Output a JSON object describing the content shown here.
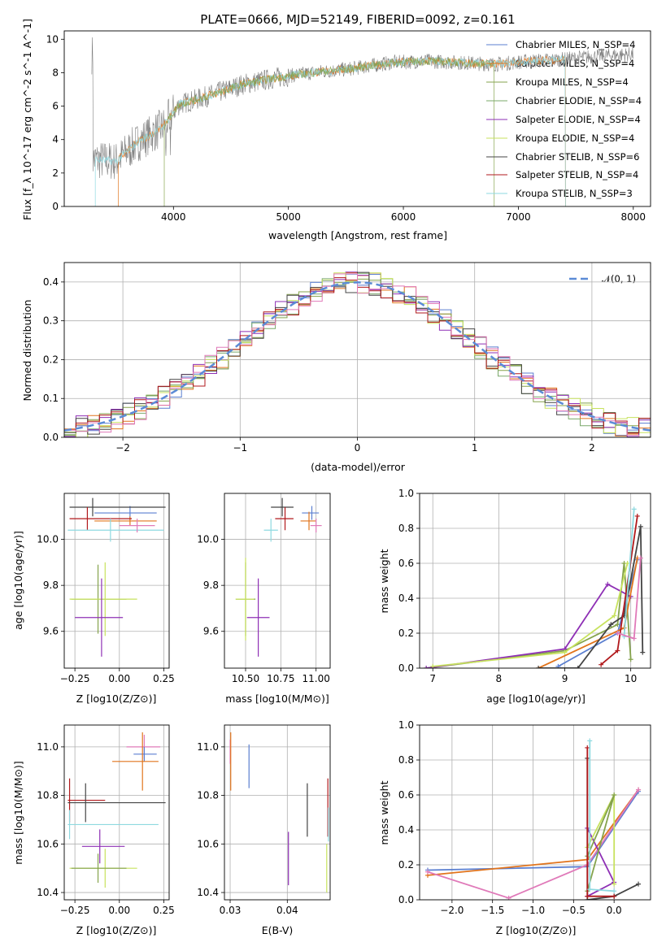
{
  "colors": {
    "chabrier_miles": "#5b7fd0",
    "salpeter_miles": "#e1741c",
    "kroupa_miles": "#85a34c",
    "chabrier_elodie": "#7aa86a",
    "salpeter_elodie": "#8e2fb5",
    "kroupa_elodie": "#c7e25e",
    "chabrier_stelib": "#444444",
    "salpeter_stelib": "#b1191c",
    "kroupa_stelib": "#8ed9e0",
    "pink": "#e07ab9",
    "data": "#808080",
    "normal": "#5b8bd6"
  },
  "chart_data": [
    {
      "id": "spectrum",
      "type": "line",
      "title": "PLATE=0666, MJD=52149, FIBERID=0092, z=0.161",
      "xlabel": "wavelength [Angstrom, rest frame]",
      "ylabel": "Flux [f_λ 10^-17 erg cm^-2 s^-1 A^-1]",
      "xlim": [
        3050,
        8150
      ],
      "ylim": [
        0,
        10.5
      ],
      "xticks": [
        "4000",
        "5000",
        "6000",
        "7000",
        "8000"
      ],
      "yticks": [
        "0",
        "2",
        "4",
        "6",
        "8",
        "10"
      ],
      "legend": [
        "Chabrier MILES, N_SSP=4",
        "Salpeter MILES, N_SSP=4",
        "Kroupa MILES, N_SSP=4",
        "Chabrier ELODIE, N_SSP=4",
        "Salpeter ELODIE, N_SSP=4",
        "Kroupa ELODIE, N_SSP=4",
        "Chabrier STELIB, N_SSP=6",
        "Salpeter STELIB, N_SSP=4",
        "Kroupa STELIB, N_SSP=3"
      ],
      "legend_position": "right",
      "continuum": [
        [
          3300,
          2.8
        ],
        [
          3500,
          2.7
        ],
        [
          3700,
          3.9
        ],
        [
          3900,
          4.7
        ],
        [
          4050,
          6.1
        ],
        [
          4300,
          6.6
        ],
        [
          4600,
          7.3
        ],
        [
          4900,
          7.7
        ],
        [
          5200,
          8.0
        ],
        [
          5500,
          8.2
        ],
        [
          5900,
          8.6
        ],
        [
          6200,
          8.7
        ],
        [
          6500,
          8.6
        ],
        [
          6800,
          8.5
        ],
        [
          7100,
          8.7
        ],
        [
          7400,
          8.8
        ],
        [
          7700,
          9.0
        ],
        [
          8000,
          9.1
        ]
      ],
      "model_ranges": [
        [
          3520,
          7410
        ],
        [
          3320,
          7410
        ],
        [
          3920,
          6790
        ]
      ]
    },
    {
      "id": "residuals",
      "type": "bar",
      "xlabel": "(data-model)/error",
      "ylabel": "Normed distribution",
      "xlim": [
        -2.5,
        2.5
      ],
      "ylim": [
        0,
        0.45
      ],
      "xticks": [
        "−2",
        "−1",
        "0",
        "1",
        "2"
      ],
      "yticks": [
        "0.0",
        "0.1",
        "0.2",
        "0.3",
        "0.4"
      ],
      "legend": [
        "𝒩(0, 1)"
      ],
      "bin_width": 0.1,
      "num_histograms": 9
    },
    {
      "id": "age-vs-Z",
      "type": "scatter",
      "xlabel": "Z [log10(Z/Z⊙)]",
      "ylabel": "age [log10(age/yr)]",
      "xlim": [
        -0.31,
        0.28
      ],
      "ylim": [
        9.44,
        10.2
      ],
      "xticks": [
        "−0.25",
        "0.00",
        "0.25"
      ],
      "yticks": [
        "9.6",
        "9.8",
        "10.0"
      ],
      "points": [
        {
          "x": 0.06,
          "y": 10.115,
          "xerr": [
            0.2,
            0.15
          ],
          "yerr": [
            0.03,
            0.03
          ],
          "c": "chabrier_miles"
        },
        {
          "x": 0.06,
          "y": 10.08,
          "xerr": [
            0.2,
            0.15
          ],
          "yerr": [
            0.02,
            0.02
          ],
          "c": "salpeter_miles"
        },
        {
          "x": -0.15,
          "y": 10.14,
          "xerr": [
            0.13,
            0.41
          ],
          "yerr": [
            0.04,
            0.04
          ],
          "c": "chabrier_stelib"
        },
        {
          "x": -0.18,
          "y": 10.09,
          "xerr": [
            0.1,
            0.25
          ],
          "yerr": [
            0.05,
            0.05
          ],
          "c": "salpeter_stelib"
        },
        {
          "x": -0.05,
          "y": 10.04,
          "xerr": [
            0.24,
            0.3
          ],
          "yerr": [
            0.05,
            0.05
          ],
          "c": "kroupa_stelib"
        },
        {
          "x": 0.1,
          "y": 10.06,
          "xerr": [
            0.1,
            0.1
          ],
          "yerr": [
            0.03,
            0.03
          ],
          "c": "pink"
        },
        {
          "x": -0.12,
          "y": 9.74,
          "xerr": [
            0.15,
            0.16
          ],
          "yerr": [
            0.15,
            0.15
          ],
          "c": "kroupa_miles"
        },
        {
          "x": -0.08,
          "y": 9.74,
          "xerr": [
            0.2,
            0.18
          ],
          "yerr": [
            0.16,
            0.16
          ],
          "c": "kroupa_elodie"
        },
        {
          "x": -0.1,
          "y": 9.66,
          "xerr": [
            0.15,
            0.12
          ],
          "yerr": [
            0.17,
            0.17
          ],
          "c": "salpeter_elodie"
        }
      ]
    },
    {
      "id": "age-vs-mass",
      "type": "scatter",
      "xlabel": "mass [log10(M/M⊙)]",
      "ylabel": "",
      "xlim": [
        10.35,
        11.1
      ],
      "ylim": [
        9.44,
        10.2
      ],
      "xticks": [
        "10.50",
        "10.75",
        "11.00"
      ],
      "yticks": [
        "9.6",
        "9.8",
        "10.0"
      ],
      "points": [
        {
          "x": 10.97,
          "y": 10.115,
          "xerr": [
            0.07,
            0.05
          ],
          "yerr": [
            0.03,
            0.03
          ],
          "c": "chabrier_miles"
        },
        {
          "x": 10.95,
          "y": 10.08,
          "xerr": [
            0.06,
            0.05
          ],
          "yerr": [
            0.04,
            0.04
          ],
          "c": "salpeter_miles"
        },
        {
          "x": 10.76,
          "y": 10.14,
          "xerr": [
            0.08,
            0.08
          ],
          "yerr": [
            0.04,
            0.04
          ],
          "c": "chabrier_stelib"
        },
        {
          "x": 10.78,
          "y": 10.09,
          "xerr": [
            0.07,
            0.06
          ],
          "yerr": [
            0.05,
            0.05
          ],
          "c": "salpeter_stelib"
        },
        {
          "x": 10.68,
          "y": 10.04,
          "xerr": [
            0.05,
            0.05
          ],
          "yerr": [
            0.05,
            0.05
          ],
          "c": "kroupa_stelib"
        },
        {
          "x": 11.0,
          "y": 10.06,
          "xerr": [
            0.04,
            0.04
          ],
          "yerr": [
            0.03,
            0.03
          ],
          "c": "pink"
        },
        {
          "x": 10.5,
          "y": 9.74,
          "xerr": [
            0.07,
            0.07
          ],
          "yerr": [
            0.16,
            0.16
          ],
          "c": "kroupa_miles"
        },
        {
          "x": 10.5,
          "y": 9.74,
          "xerr": [
            0.07,
            0.06
          ],
          "yerr": [
            0.18,
            0.18
          ],
          "c": "kroupa_elodie"
        },
        {
          "x": 10.59,
          "y": 9.66,
          "xerr": [
            0.08,
            0.08
          ],
          "yerr": [
            0.17,
            0.17
          ],
          "c": "salpeter_elodie"
        }
      ]
    },
    {
      "id": "massweight-vs-age",
      "type": "line",
      "xlabel": "age [log10(age/yr)]",
      "ylabel": "mass weight",
      "xlim": [
        6.8,
        10.3
      ],
      "ylim": [
        0,
        1
      ],
      "xticks": [
        "7",
        "8",
        "9",
        "10"
      ],
      "yticks": [
        "0.0",
        "0.2",
        "0.4",
        "0.6",
        "0.8",
        "1.0"
      ],
      "series": [
        {
          "c": "kroupa_miles",
          "points": [
            [
              6.9,
              0.0
            ],
            [
              9.0,
              0.1
            ],
            [
              9.8,
              0.25
            ],
            [
              9.9,
              0.6
            ],
            [
              10.0,
              0.05
            ]
          ]
        },
        {
          "c": "salpeter_elodie",
          "points": [
            [
              6.9,
              0.0
            ],
            [
              9.0,
              0.11
            ],
            [
              9.65,
              0.48
            ],
            [
              10.0,
              0.41
            ]
          ]
        },
        {
          "c": "kroupa_elodie",
          "points": [
            [
              7.0,
              0.01
            ],
            [
              9.0,
              0.09
            ],
            [
              9.75,
              0.3
            ],
            [
              9.95,
              0.6
            ]
          ]
        },
        {
          "c": "chabrier_miles",
          "points": [
            [
              8.9,
              0.01
            ],
            [
              9.8,
              0.2
            ],
            [
              10.1,
              0.62
            ]
          ]
        },
        {
          "c": "salpeter_miles",
          "points": [
            [
              8.6,
              0.0
            ],
            [
              9.9,
              0.23
            ],
            [
              10.1,
              0.63
            ]
          ]
        },
        {
          "c": "chabrier_stelib",
          "points": [
            [
              8.6,
              0.0
            ],
            [
              9.2,
              0.0
            ],
            [
              9.7,
              0.25
            ],
            [
              9.9,
              0.3
            ],
            [
              10.15,
              0.81
            ],
            [
              10.18,
              0.09
            ]
          ]
        },
        {
          "c": "salpeter_stelib",
          "points": [
            [
              9.55,
              0.02
            ],
            [
              9.8,
              0.1
            ],
            [
              10.1,
              0.87
            ]
          ]
        },
        {
          "c": "kroupa_stelib",
          "points": [
            [
              9.9,
              0.18
            ],
            [
              10.05,
              0.91
            ]
          ]
        },
        {
          "c": "pink",
          "points": [
            [
              9.8,
              0.2
            ],
            [
              10.05,
              0.17
            ],
            [
              10.15,
              0.63
            ]
          ]
        }
      ]
    },
    {
      "id": "mass-vs-Z",
      "type": "scatter",
      "xlabel": "Z [log10(Z/Z⊙)]",
      "ylabel": "mass [log10(M/M⊙)]",
      "xlim": [
        -0.31,
        0.28
      ],
      "ylim": [
        10.37,
        11.09
      ],
      "xticks": [
        "−0.25",
        "0.00",
        "0.25"
      ],
      "yticks": [
        "10.4",
        "10.6",
        "10.8",
        "11.0"
      ],
      "points": [
        {
          "x": 0.14,
          "y": 11.0,
          "xerr": [
            0.1,
            0.09
          ],
          "yerr": [
            0.05,
            0.05
          ],
          "c": "pink"
        },
        {
          "x": 0.14,
          "y": 10.97,
          "xerr": [
            0.06,
            0.07
          ],
          "yerr": [
            0.03,
            0.03
          ],
          "c": "chabrier_miles"
        },
        {
          "x": 0.13,
          "y": 10.94,
          "xerr": [
            0.17,
            0.09
          ],
          "yerr": [
            0.12,
            0.12
          ],
          "c": "salpeter_miles"
        },
        {
          "x": -0.28,
          "y": 10.78,
          "xerr": [
            0.01,
            0.2
          ],
          "yerr": [
            0.09,
            0.09
          ],
          "c": "salpeter_stelib"
        },
        {
          "x": -0.19,
          "y": 10.77,
          "xerr": [
            0.1,
            0.45
          ],
          "yerr": [
            0.08,
            0.08
          ],
          "c": "chabrier_stelib"
        },
        {
          "x": -0.28,
          "y": 10.68,
          "xerr": [
            0.01,
            0.5
          ],
          "yerr": [
            0.06,
            0.06
          ],
          "c": "kroupa_stelib"
        },
        {
          "x": -0.11,
          "y": 10.59,
          "xerr": [
            0.1,
            0.14
          ],
          "yerr": [
            0.07,
            0.07
          ],
          "c": "salpeter_elodie"
        },
        {
          "x": -0.08,
          "y": 10.5,
          "xerr": [
            0.2,
            0.18
          ],
          "yerr": [
            0.08,
            0.08
          ],
          "c": "kroupa_elodie"
        },
        {
          "x": -0.12,
          "y": 10.5,
          "xerr": [
            0.15,
            0.16
          ],
          "yerr": [
            0.06,
            0.06
          ],
          "c": "kroupa_miles"
        }
      ]
    },
    {
      "id": "mass-vs-EBV",
      "type": "scatter",
      "xlabel": "E(B-V)",
      "ylabel": "",
      "xlim": [
        0.029,
        0.0475
      ],
      "ylim": [
        10.37,
        11.09
      ],
      "xticks": [
        "0.03",
        "0.04"
      ],
      "yticks": [
        "10.4",
        "10.6",
        "10.8",
        "11.0"
      ],
      "points": [
        {
          "x": 0.03,
          "y": 10.98,
          "xerr": [
            0,
            0
          ],
          "yerr": [
            0.05,
            0.05
          ],
          "c": "pink"
        },
        {
          "x": 0.0301,
          "y": 10.94,
          "xerr": [
            0,
            0
          ],
          "yerr": [
            0.12,
            0.12
          ],
          "c": "salpeter_miles"
        },
        {
          "x": 0.0333,
          "y": 10.92,
          "xerr": [
            0,
            0
          ],
          "yerr": [
            0.09,
            0.09
          ],
          "c": "chabrier_miles"
        },
        {
          "x": 0.0402,
          "y": 10.54,
          "xerr": [
            0,
            0
          ],
          "yerr": [
            0.11,
            0.11
          ],
          "c": "salpeter_elodie"
        },
        {
          "x": 0.0435,
          "y": 10.74,
          "xerr": [
            0,
            0
          ],
          "yerr": [
            0.11,
            0.11
          ],
          "c": "chabrier_stelib"
        },
        {
          "x": 0.0469,
          "y": 10.5,
          "xerr": [
            0,
            0
          ],
          "yerr": [
            0.1,
            0.1
          ],
          "c": "kroupa_elodie"
        },
        {
          "x": 0.0471,
          "y": 10.75,
          "xerr": [
            0,
            0
          ],
          "yerr": [
            0.12,
            0.12
          ],
          "c": "salpeter_stelib"
        },
        {
          "x": 0.0472,
          "y": 10.68,
          "xerr": [
            0,
            0
          ],
          "yerr": [
            0.07,
            0.07
          ],
          "c": "kroupa_stelib"
        }
      ]
    },
    {
      "id": "massweight-vs-Z",
      "type": "line",
      "xlabel": "Z [log10(Z/Z⊙)]",
      "ylabel": "mass weight",
      "xlim": [
        -2.4,
        0.45
      ],
      "ylim": [
        0,
        1
      ],
      "xticks": [
        "−2.0",
        "−1.5",
        "−1.0",
        "−0.5",
        "0.0"
      ],
      "yticks": [
        "0.0",
        "0.2",
        "0.4",
        "0.6",
        "0.8",
        "1.0"
      ],
      "series": [
        {
          "c": "chabrier_miles",
          "points": [
            [
              -2.3,
              0.17
            ],
            [
              -0.33,
              0.19
            ],
            [
              0.3,
              0.62
            ]
          ]
        },
        {
          "c": "salpeter_miles",
          "points": [
            [
              -2.3,
              0.14
            ],
            [
              -0.33,
              0.23
            ],
            [
              0.3,
              0.63
            ]
          ]
        },
        {
          "c": "pink",
          "points": [
            [
              -2.3,
              0.16
            ],
            [
              -1.3,
              0.01
            ],
            [
              -0.33,
              0.2
            ],
            [
              0.3,
              0.63
            ]
          ]
        },
        {
          "c": "salpeter_elodie",
          "points": [
            [
              -0.33,
              0.41
            ],
            [
              0.0,
              0.1
            ],
            [
              -0.33,
              0.02
            ]
          ]
        },
        {
          "c": "kroupa_elodie",
          "points": [
            [
              -0.33,
              0.3
            ],
            [
              0.0,
              0.6
            ],
            [
              0.0,
              0.09
            ]
          ]
        },
        {
          "c": "kroupa_miles",
          "points": [
            [
              -0.33,
              0.25
            ],
            [
              0.0,
              0.6
            ],
            [
              -0.33,
              0.05
            ]
          ]
        },
        {
          "c": "chabrier_stelib",
          "points": [
            [
              -0.33,
              0.81
            ],
            [
              -0.33,
              0.0
            ],
            [
              0.0,
              0.02
            ],
            [
              0.3,
              0.09
            ]
          ]
        },
        {
          "c": "salpeter_stelib",
          "points": [
            [
              -0.33,
              0.87
            ],
            [
              -0.33,
              0.02
            ],
            [
              0.0,
              0.02
            ]
          ]
        },
        {
          "c": "kroupa_stelib",
          "points": [
            [
              -0.3,
              0.91
            ],
            [
              -0.3,
              0.06
            ],
            [
              0.0,
              0.05
            ]
          ]
        }
      ]
    }
  ]
}
